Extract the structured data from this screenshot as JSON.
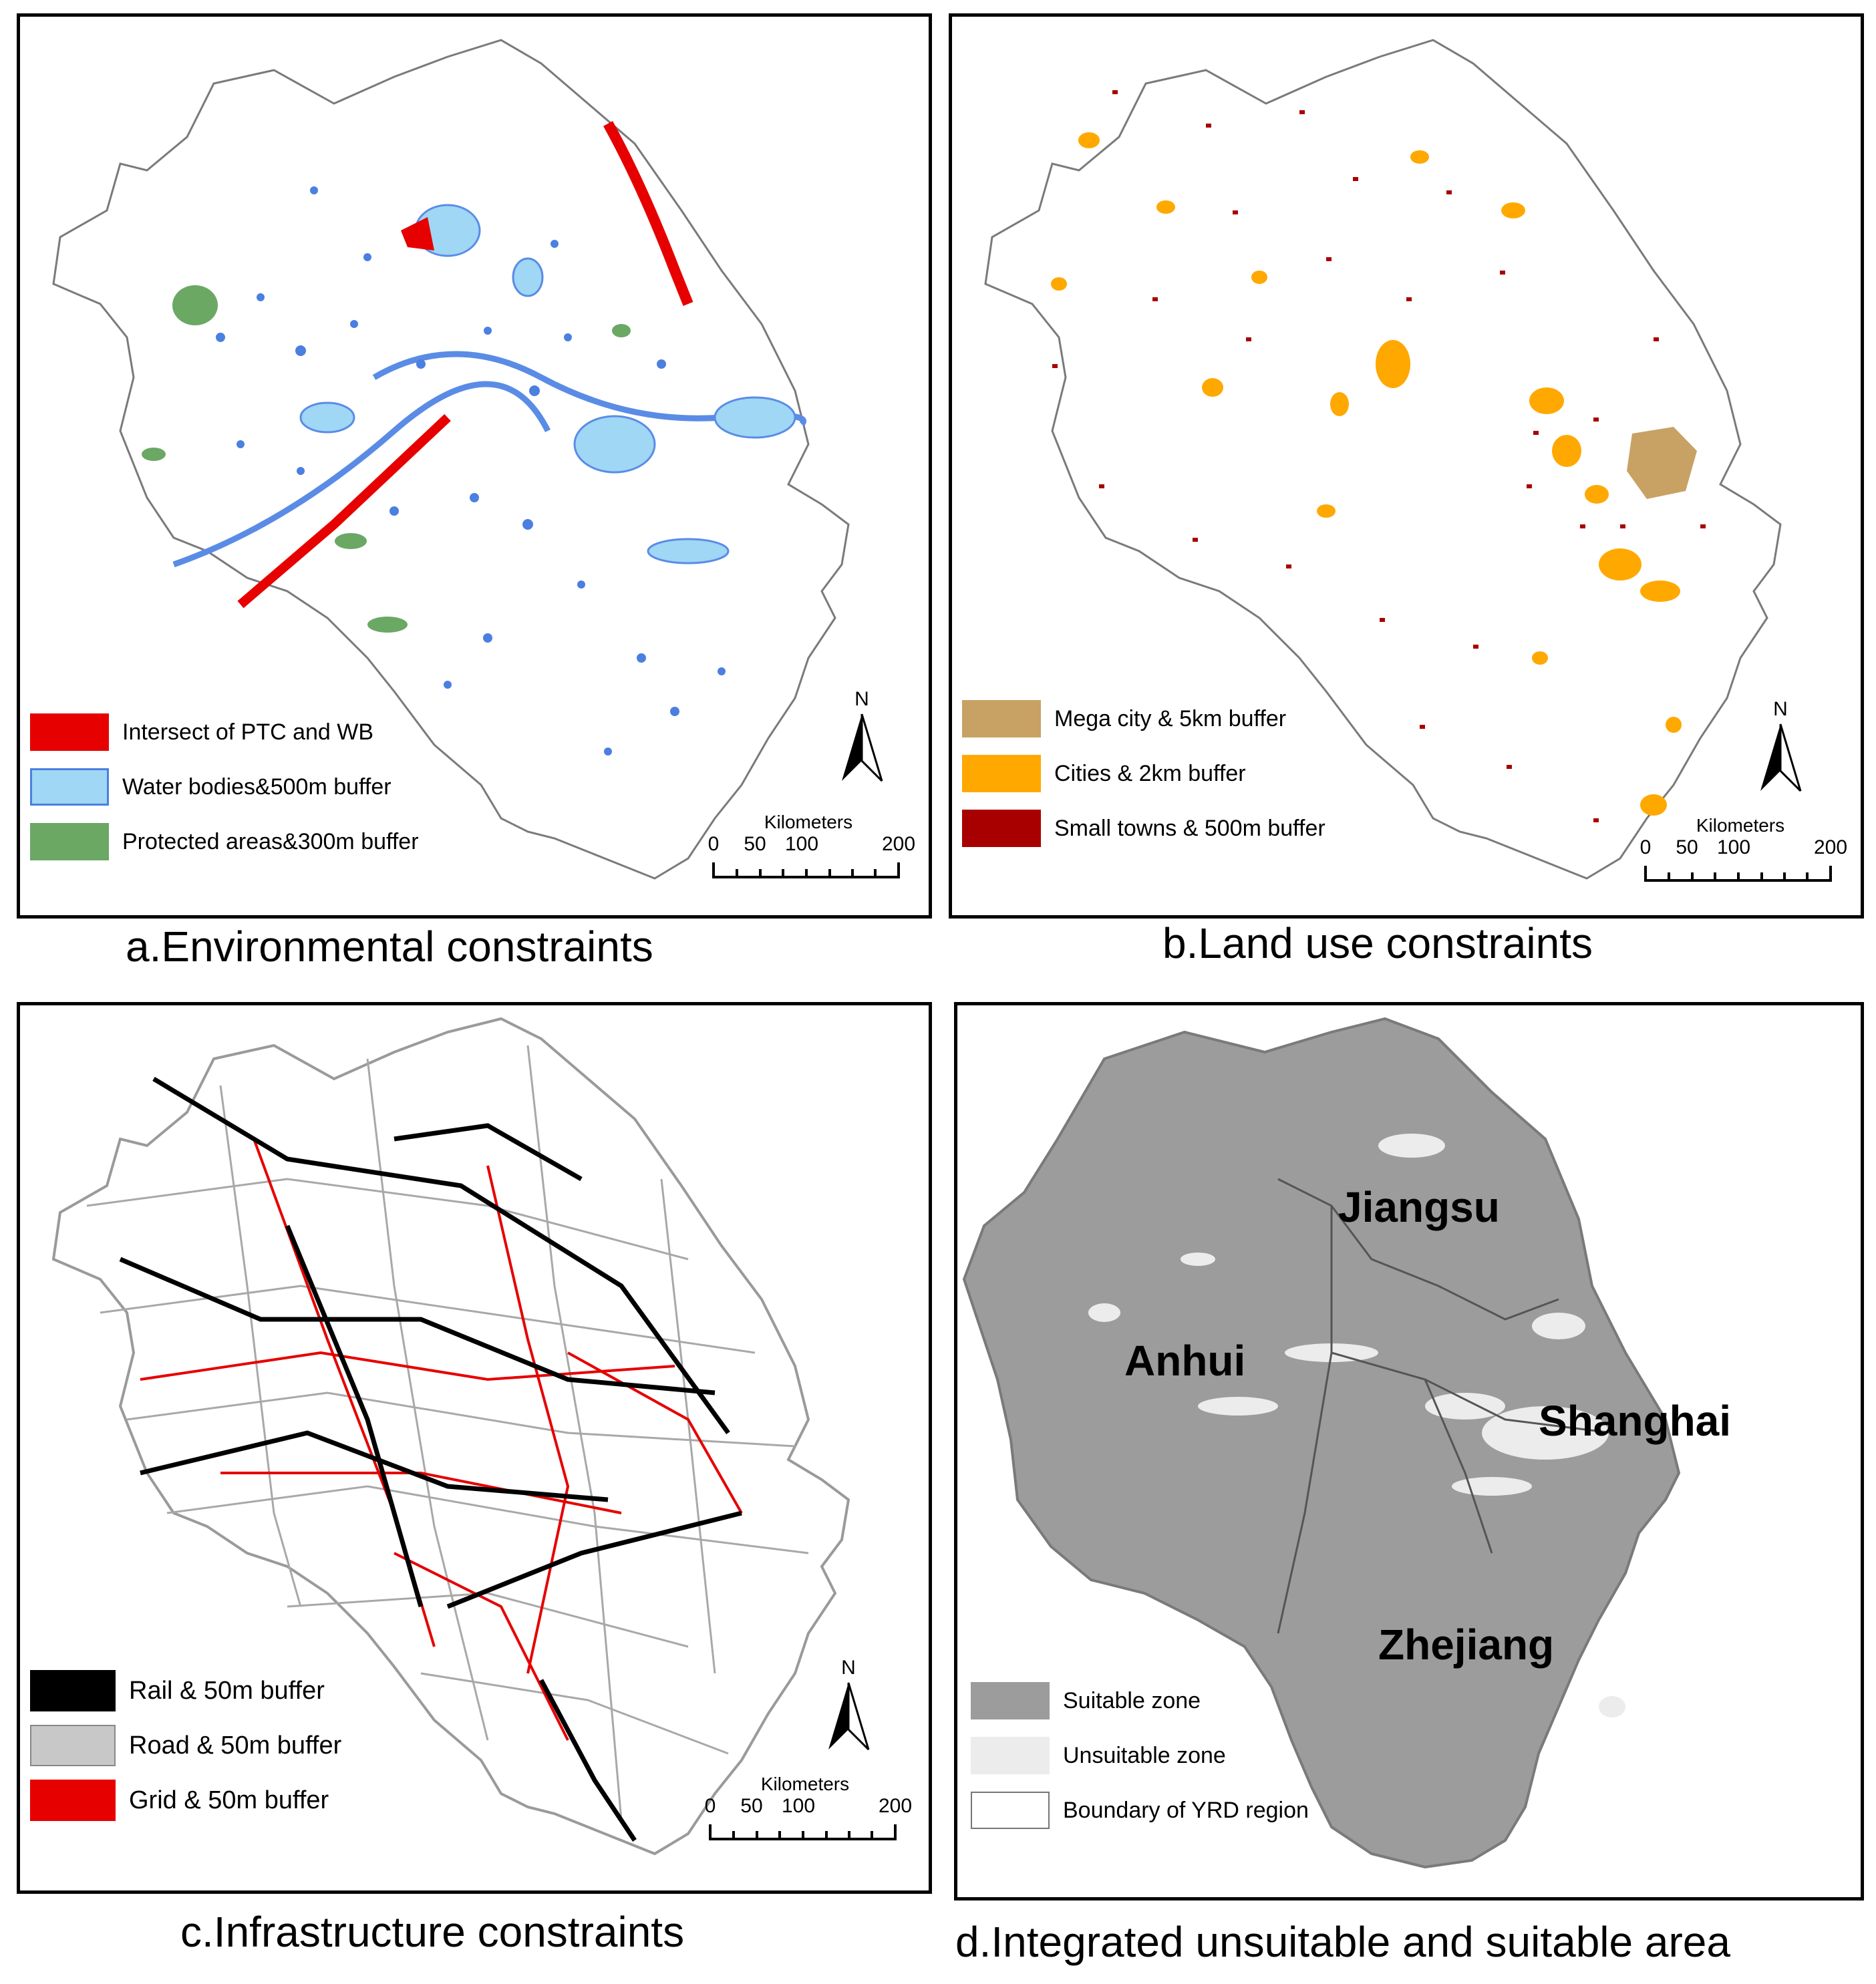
{
  "panels": {
    "a": {
      "caption": "a.Environmental constraints",
      "legend": [
        {
          "label": "Intersect of PTC and WB",
          "color": "#e60000"
        },
        {
          "label": "Water bodies&500m buffer",
          "color": "#9fd7f5"
        },
        {
          "label": "Protected areas&300m buffer",
          "color": "#6aa864"
        }
      ]
    },
    "b": {
      "caption": "b.Land use constraints",
      "legend": [
        {
          "label": "Mega city & 5km buffer",
          "color": "#c8a264"
        },
        {
          "label": "Cities & 2km buffer",
          "color": "#ffa800"
        },
        {
          "label": "Small towns & 500m buffer",
          "color": "#a80000"
        }
      ]
    },
    "c": {
      "caption": "c.Infrastructure constraints",
      "legend": [
        {
          "label": "Rail & 50m buffer",
          "color": "#000000"
        },
        {
          "label": "Road & 50m buffer",
          "color": "#c8c8c8"
        },
        {
          "label": "Grid & 50m buffer",
          "color": "#e60000"
        }
      ]
    },
    "d": {
      "caption": "d.Integrated unsuitable and suitable area",
      "legend": [
        {
          "label": "Suitable zone",
          "color": "#9c9c9c"
        },
        {
          "label": "Unsuitable zone",
          "color": "#ececec"
        },
        {
          "label": "Boundary of YRD region",
          "color": "#ffffff"
        }
      ],
      "regions": [
        "Jiangsu",
        "Anhui",
        "Shanghai",
        "Zhejiang"
      ]
    }
  },
  "north_arrow": {
    "letter": "N",
    "icon": "north-arrow-icon"
  },
  "scale_bar": {
    "unit": "Kilometers",
    "ticks": [
      "0",
      "50",
      "100",
      "200"
    ]
  }
}
